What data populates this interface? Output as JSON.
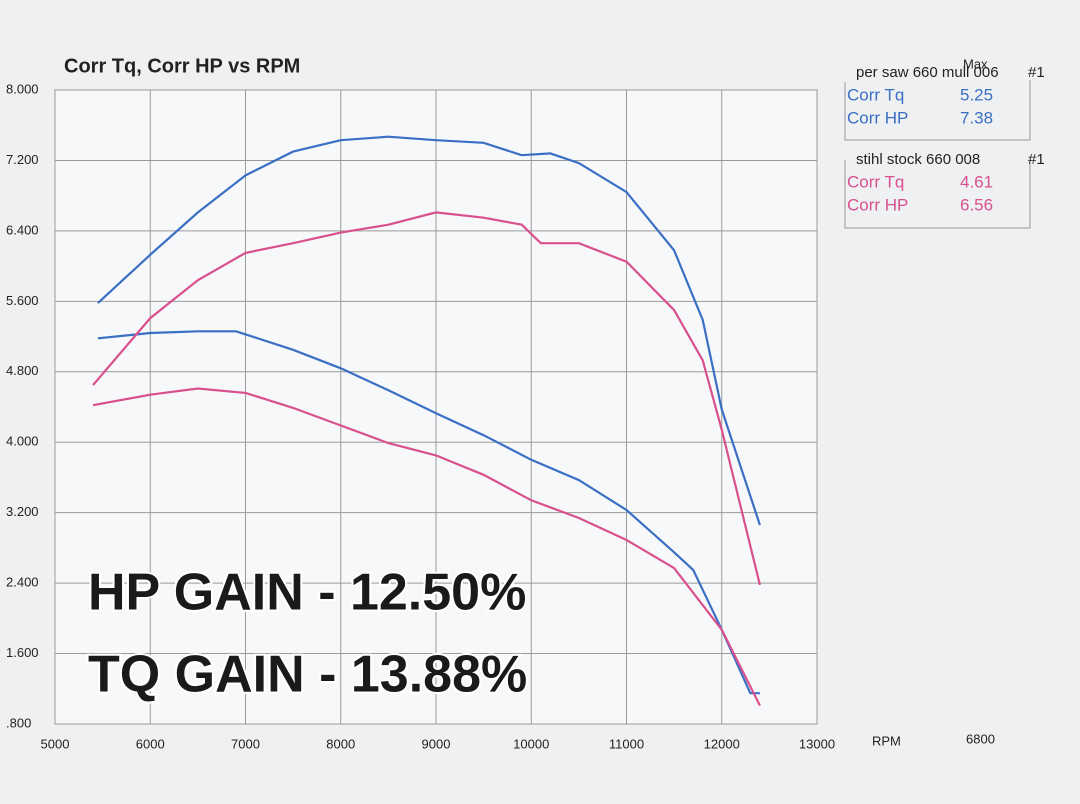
{
  "chart_data": {
    "type": "line",
    "title": "Corr Tq, Corr HP vs RPM",
    "x_label": "RPM",
    "rpm_readout": 6800,
    "xlim": [
      5000,
      13000
    ],
    "xticks": [
      5000,
      6000,
      7000,
      8000,
      9000,
      10000,
      11000,
      12000,
      13000
    ],
    "ylim": [
      0.8,
      8.0
    ],
    "yticks": [
      {
        "value": 0.8,
        "label": ".800"
      },
      {
        "value": 1.6,
        "label": "1.600"
      },
      {
        "value": 2.4,
        "label": "2.400"
      },
      {
        "value": 3.2,
        "label": "3.200"
      },
      {
        "value": 4.0,
        "label": "4.000"
      },
      {
        "value": 4.8,
        "label": "4.800"
      },
      {
        "value": 5.6,
        "label": "5.600"
      },
      {
        "value": 6.4,
        "label": "6.400"
      },
      {
        "value": 7.2,
        "label": "7.200"
      },
      {
        "value": 8.0,
        "label": "8.000"
      }
    ],
    "grid": true,
    "legend_header": "Max",
    "legend_groups": [
      {
        "title": "per saw 660 mull 006",
        "run": "#1"
      },
      {
        "title": "stihl stock 660 008",
        "run": "#1"
      }
    ],
    "series": [
      {
        "name": "Corr Tq",
        "color": "#3a6fc4",
        "max": 5.25,
        "x": [
          5450,
          6000,
          6500,
          6900,
          7500,
          8000,
          8500,
          9000,
          9500,
          10000,
          10500,
          11000,
          11500,
          11700,
          12000,
          12300,
          12400
        ],
        "values": [
          5.18,
          5.24,
          5.26,
          5.26,
          5.05,
          4.84,
          4.59,
          4.33,
          4.08,
          3.8,
          3.57,
          3.23,
          2.75,
          2.55,
          1.87,
          1.15,
          1.15
        ]
      },
      {
        "name": "Corr HP",
        "color": "#3a6fc4",
        "max": 7.38,
        "x": [
          5450,
          6000,
          6500,
          7000,
          7500,
          8000,
          8500,
          9000,
          9500,
          9900,
          10200,
          10500,
          11000,
          11500,
          11800,
          12000,
          12400
        ],
        "values": [
          5.58,
          6.13,
          6.61,
          7.03,
          7.3,
          7.43,
          7.47,
          7.43,
          7.4,
          7.26,
          7.28,
          7.17,
          6.84,
          6.18,
          5.39,
          4.37,
          3.06
        ]
      },
      {
        "name": "Corr Tq",
        "color": "#d9508f",
        "max": 4.61,
        "x": [
          5400,
          6000,
          6500,
          7000,
          7500,
          8000,
          8500,
          9000,
          9500,
          10000,
          10500,
          11000,
          11500,
          12000,
          12400
        ],
        "values": [
          4.42,
          4.54,
          4.61,
          4.56,
          4.39,
          4.19,
          3.99,
          3.85,
          3.63,
          3.34,
          3.14,
          2.89,
          2.57,
          1.87,
          1.01
        ]
      },
      {
        "name": "Corr HP",
        "color": "#d9508f",
        "max": 6.56,
        "x": [
          5400,
          6000,
          6500,
          7000,
          7500,
          8000,
          8500,
          9000,
          9500,
          9900,
          10100,
          10500,
          11000,
          11500,
          11800,
          12000,
          12400
        ],
        "values": [
          4.65,
          5.41,
          5.84,
          6.15,
          6.26,
          6.38,
          6.47,
          6.61,
          6.55,
          6.47,
          6.26,
          6.26,
          6.05,
          5.5,
          4.93,
          4.14,
          2.38
        ]
      }
    ],
    "annotations": [
      "HP GAIN - 12.50%",
      "TQ GAIN - 13.88%"
    ]
  }
}
